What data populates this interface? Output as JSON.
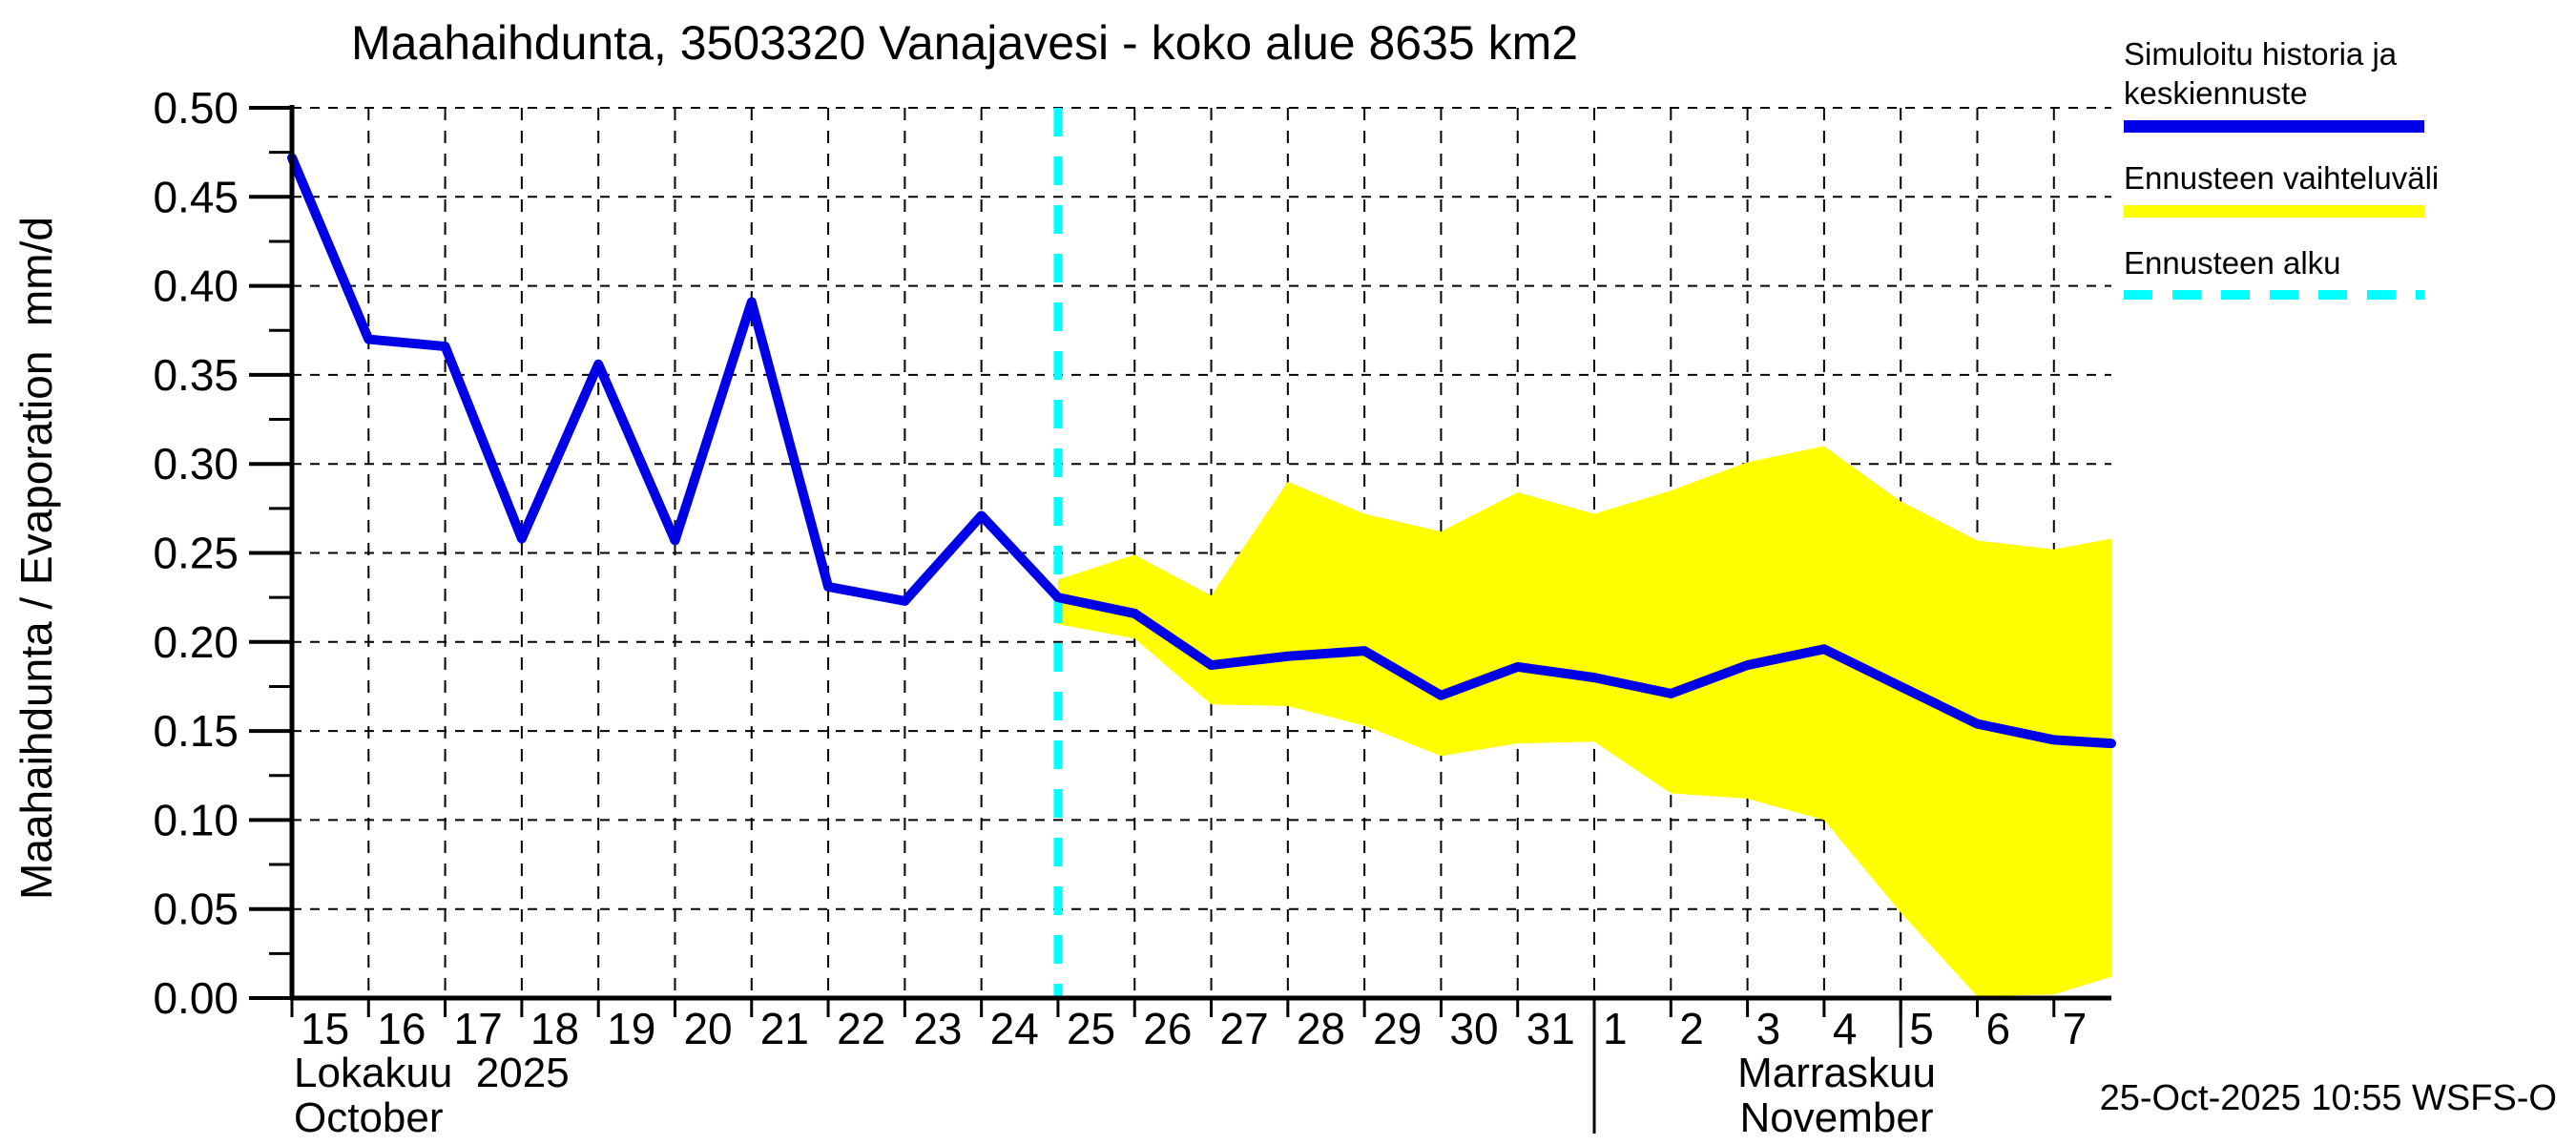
{
  "window": {
    "background": "#FFFFFF"
  },
  "title": "Maahaihdunta, 3503320 Vanajavesi - koko alue 8635 km2",
  "y_axis": {
    "label": "Maahaihdunta / Evaporation  mm/d",
    "tick_labels": [
      "0.00",
      "0.05",
      "0.10",
      "0.15",
      "0.20",
      "0.25",
      "0.30",
      "0.35",
      "0.40",
      "0.45",
      "0.50"
    ]
  },
  "x_axis": {
    "october_day_labels": [
      "15",
      "16",
      "17",
      "18",
      "19",
      "20",
      "21",
      "22",
      "23",
      "24",
      "25",
      "26",
      "27",
      "28",
      "29",
      "30",
      "31"
    ],
    "november_day_labels": [
      "1",
      "2",
      "3",
      "4",
      "5",
      "6",
      "7"
    ],
    "month_left_line1": "Lokakuu  2025",
    "month_left_line2": "October",
    "month_right_line1": "Marraskuu",
    "month_right_line2": "November"
  },
  "legend": {
    "items": [
      {
        "lines": [
          "Simuloitu historia ja",
          "keskiennuste"
        ],
        "swatch_color": "#0000E6",
        "swatch_style": "solid"
      },
      {
        "lines": [
          "Ennusteen vaihteluväli"
        ],
        "swatch_color": "#FFFF00",
        "swatch_style": "solid"
      },
      {
        "lines": [
          "Ennusteen alku"
        ],
        "swatch_color": "#00FFFF",
        "swatch_style": "dashed"
      }
    ]
  },
  "footer": {
    "timestamp": "25-Oct-2025 10:55 WSFS-O"
  },
  "colors": {
    "history_line": "#0000E6",
    "range_band": "#FFFF00",
    "forecast_start": "#00FFFF",
    "axis": "#000000",
    "grid": "#000000",
    "text": "#000000"
  },
  "chart_data": {
    "type": "line",
    "title": "Maahaihdunta, 3503320 Vanajavesi - koko alue 8635 km2",
    "xlabel": "Lokakuu 2025 (October) - Marraskuu (November)",
    "ylabel": "Maahaihdunta / Evaporation mm/d",
    "ylim": [
      0,
      0.5
    ],
    "y_tick_step": 0.05,
    "grid": true,
    "legend_position": "outside-top-right",
    "x_categories": [
      "Oct 15",
      "Oct 16",
      "Oct 17",
      "Oct 18",
      "Oct 19",
      "Oct 20",
      "Oct 21",
      "Oct 22",
      "Oct 23",
      "Oct 24",
      "Oct 25",
      "Oct 26",
      "Oct 27",
      "Oct 28",
      "Oct 29",
      "Oct 30",
      "Oct 31",
      "Nov 1",
      "Nov 2",
      "Nov 3",
      "Nov 4",
      "Nov 5",
      "Nov 6",
      "Nov 7"
    ],
    "x_extent_days": 23.75,
    "forecast_start_index": 10,
    "series": [
      {
        "name": "Simuloitu historia (history)",
        "type": "line",
        "color": "#0000E6",
        "points": [
          [
            0,
            0.472
          ],
          [
            1,
            0.37
          ],
          [
            2,
            0.366
          ],
          [
            3,
            0.258
          ],
          [
            4,
            0.356
          ],
          [
            5,
            0.257
          ],
          [
            6,
            0.391
          ],
          [
            7,
            0.231
          ],
          [
            8,
            0.223
          ],
          [
            9,
            0.271
          ],
          [
            10,
            0.225
          ]
        ]
      },
      {
        "name": "Keskiennuste (forecast median)",
        "type": "line",
        "color": "#0000E6",
        "points": [
          [
            10,
            0.225
          ],
          [
            11,
            0.216
          ],
          [
            12,
            0.187
          ],
          [
            13,
            0.192
          ],
          [
            14,
            0.195
          ],
          [
            15,
            0.17
          ],
          [
            16,
            0.186
          ],
          [
            17,
            0.18
          ],
          [
            18,
            0.171
          ],
          [
            19,
            0.187
          ],
          [
            20,
            0.196
          ],
          [
            21,
            0.175
          ],
          [
            22,
            0.154
          ],
          [
            23,
            0.145
          ],
          [
            23.75,
            0.143
          ]
        ]
      },
      {
        "name": "Ennusteen vaihteluväli ylä (range upper)",
        "type": "band-upper",
        "color": "#FFFF00",
        "points": [
          [
            10,
            0.235
          ],
          [
            11,
            0.249
          ],
          [
            12,
            0.226
          ],
          [
            13,
            0.29
          ],
          [
            14,
            0.272
          ],
          [
            15,
            0.262
          ],
          [
            16,
            0.284
          ],
          [
            17,
            0.272
          ],
          [
            18,
            0.285
          ],
          [
            19,
            0.301
          ],
          [
            20,
            0.31
          ],
          [
            21,
            0.279
          ],
          [
            22,
            0.257
          ],
          [
            23,
            0.252
          ],
          [
            23.75,
            0.258
          ]
        ]
      },
      {
        "name": "Ennusteen vaihteluväli ala (range lower)",
        "type": "band-lower",
        "color": "#FFFF00",
        "points": [
          [
            10,
            0.21
          ],
          [
            11,
            0.202
          ],
          [
            12,
            0.165
          ],
          [
            13,
            0.164
          ],
          [
            14,
            0.153
          ],
          [
            15,
            0.136
          ],
          [
            16,
            0.143
          ],
          [
            17,
            0.144
          ],
          [
            18,
            0.115
          ],
          [
            19,
            0.112
          ],
          [
            20,
            0.1
          ],
          [
            21,
            0.048
          ],
          [
            22,
            0.001
          ],
          [
            23,
            0.002
          ],
          [
            23.75,
            0.012
          ]
        ]
      }
    ]
  }
}
